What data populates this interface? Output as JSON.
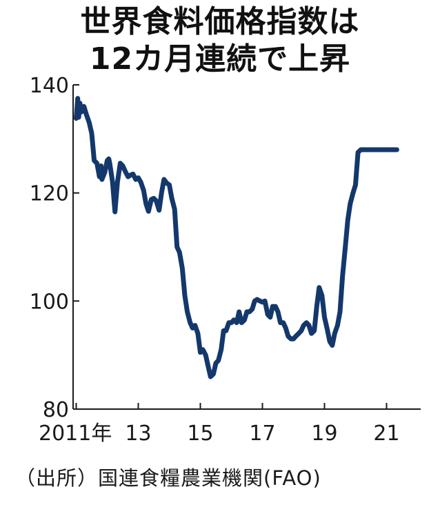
{
  "chart_data": {
    "type": "line",
    "title": "世界食料価格指数は",
    "subtitle": "12カ月連続で上昇",
    "source": "（出所）国連食糧農業機関(FAO)",
    "line_color": "#14386b",
    "ylim": [
      80,
      140
    ],
    "xlim": [
      2010.9,
      2022.1
    ],
    "yticks": [
      {
        "value": 80,
        "label": "80"
      },
      {
        "value": 100,
        "label": "100"
      },
      {
        "value": 120,
        "label": "120"
      },
      {
        "value": 140,
        "label": "140"
      }
    ],
    "xticks": [
      {
        "value": 2011,
        "label": "2011年"
      },
      {
        "value": 2013,
        "label": "13"
      },
      {
        "value": 2015,
        "label": "15"
      },
      {
        "value": 2017,
        "label": "17"
      },
      {
        "value": 2019,
        "label": "19"
      },
      {
        "value": 2021,
        "label": "21"
      }
    ],
    "x": [
      2011.0,
      2011.05,
      2011.08,
      2011.12,
      2011.17,
      2011.25,
      2011.33,
      2011.42,
      2011.5,
      2011.58,
      2011.67,
      2011.75,
      2011.8,
      2011.83,
      2011.92,
      2012.0,
      2012.05,
      2012.08,
      2012.17,
      2012.25,
      2012.33,
      2012.42,
      2012.5,
      2012.58,
      2012.67,
      2012.75,
      2012.83,
      2012.92,
      2013.0,
      2013.08,
      2013.17,
      2013.25,
      2013.33,
      2013.42,
      2013.5,
      2013.58,
      2013.67,
      2013.75,
      2013.83,
      2013.92,
      2014.0,
      2014.08,
      2014.17,
      2014.25,
      2014.33,
      2014.42,
      2014.5,
      2014.58,
      2014.67,
      2014.75,
      2014.83,
      2014.92,
      2015.0,
      2015.08,
      2015.17,
      2015.25,
      2015.33,
      2015.42,
      2015.5,
      2015.58,
      2015.67,
      2015.75,
      2015.83,
      2015.92,
      2016.0,
      2016.08,
      2016.17,
      2016.25,
      2016.33,
      2016.42,
      2016.5,
      2016.58,
      2016.67,
      2016.75,
      2016.83,
      2016.92,
      2017.0,
      2017.08,
      2017.17,
      2017.25,
      2017.33,
      2017.42,
      2017.5,
      2017.58,
      2017.67,
      2017.75,
      2017.83,
      2017.92,
      2018.0,
      2018.08,
      2018.17,
      2018.25,
      2018.33,
      2018.42,
      2018.5,
      2018.58,
      2018.67,
      2018.75,
      2018.83,
      2018.92,
      2019.0,
      2019.08,
      2019.17,
      2019.25,
      2019.33,
      2019.42,
      2019.5,
      2019.58,
      2019.67,
      2019.75,
      2019.83,
      2019.92,
      2020.0,
      2020.08,
      2020.17,
      2020.25,
      2020.33,
      2020.42,
      2020.5,
      2020.58,
      2020.67,
      2020.75,
      2020.83,
      2020.92,
      2021.0,
      2021.08,
      2021.17,
      2021.25,
      2021.33
    ],
    "values": [
      133.8,
      137.5,
      134.0,
      136.6,
      135.0,
      136.0,
      134.5,
      133.0,
      131.0,
      126.0,
      125.5,
      123.0,
      125.0,
      122.5,
      123.8,
      126.0,
      126.3,
      125.5,
      122.0,
      116.5,
      122.0,
      125.5,
      125.0,
      124.0,
      123.0,
      123.3,
      123.5,
      122.5,
      122.8,
      122.0,
      120.5,
      118.0,
      116.6,
      118.8,
      119.0,
      118.5,
      116.8,
      120.0,
      122.5,
      121.8,
      121.5,
      119.0,
      117.0,
      110.0,
      109.0,
      106.0,
      101.0,
      98.0,
      96.0,
      95.0,
      95.5,
      94.0,
      90.5,
      91.0,
      90.0,
      88.0,
      86.0,
      86.5,
      88.5,
      89.0,
      91.0,
      94.5,
      94.5,
      96.0,
      96.0,
      96.5,
      96.0,
      98.0,
      96.0,
      96.5,
      98.0,
      98.0,
      98.5,
      100.0,
      100.3,
      100.0,
      99.8,
      100.0,
      97.5,
      97.0,
      99.0,
      99.0,
      98.0,
      96.0,
      96.0,
      95.0,
      93.5,
      93.0,
      93.0,
      93.5,
      94.0,
      94.5,
      95.5,
      96.0,
      95.5,
      94.0,
      94.5,
      99.0,
      102.5,
      101.0,
      97.0,
      95.0,
      92.5,
      91.8,
      94.0,
      95.5,
      98.0,
      104.5,
      110.0,
      115.0,
      118.0,
      120.0,
      121.5,
      127.5,
      128.0,
      128.0,
      128.0,
      128.0,
      128.0,
      128.0,
      128.0,
      128.0,
      128.0,
      128.0,
      128.0,
      128.0,
      128.0,
      128.0,
      128.0
    ]
  }
}
